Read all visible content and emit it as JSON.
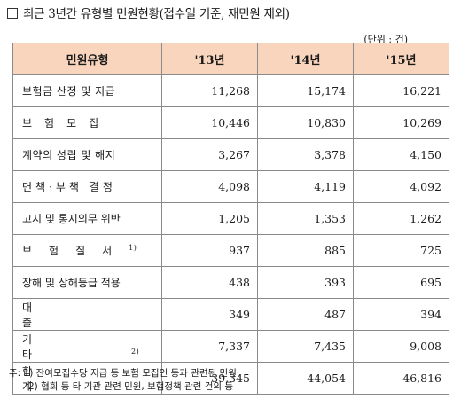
{
  "title": "최근 3년간 유형별 민원현황(접수일 기준, 재민원 제외)",
  "unit": "(단위 : 건)",
  "columns": {
    "category": "민원유형",
    "y13": "'13년",
    "y14": "'14년",
    "y15": "'15년"
  },
  "rows": [
    {
      "label": "보험금 산정 및 지급",
      "sup": "",
      "values": [
        "11,268",
        "15,174",
        "16,221"
      ]
    },
    {
      "label": "보험모집",
      "sup": "",
      "values": [
        "10,446",
        "10,830",
        "10,269"
      ]
    },
    {
      "label": "계약의 성립 및 해지",
      "sup": "",
      "values": [
        "3,267",
        "3,378",
        "4,150"
      ]
    },
    {
      "label": "면책·부책 결정",
      "sup": "",
      "values": [
        "4,098",
        "4,119",
        "4,092"
      ]
    },
    {
      "label": "고지 및 통지의무 위반",
      "sup": "",
      "values": [
        "1,205",
        "1,353",
        "1,262"
      ]
    },
    {
      "label": "보험질서",
      "sup": "1)",
      "values": [
        "937",
        "885",
        "725"
      ]
    },
    {
      "label": "장해 및 상해등급 적용",
      "sup": "",
      "values": [
        "438",
        "393",
        "695"
      ]
    },
    {
      "label": "대출",
      "sup": "",
      "values": [
        "349",
        "487",
        "394"
      ]
    },
    {
      "label": "기타",
      "sup": "2)",
      "values": [
        "7,337",
        "7,435",
        "9,008"
      ]
    },
    {
      "label": "합계",
      "sup": "",
      "values": [
        "39,345",
        "44,054",
        "46,816"
      ]
    }
  ],
  "notes": {
    "line1": "주: 1) 잔여모집수당 지급 등 보험 모집인 등과 관련된 민원",
    "line2": "2) 협회 등 타 기관 관련 민원, 보험정책 관련 건의 등"
  }
}
